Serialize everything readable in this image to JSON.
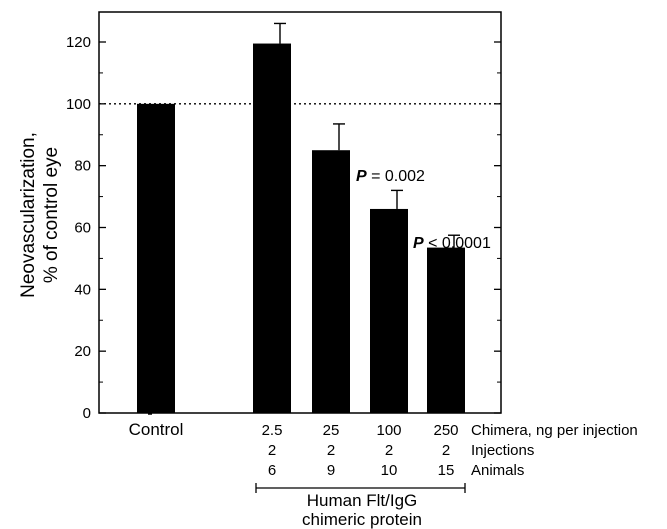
{
  "chart_data": {
    "type": "bar",
    "ylabel_line1": "Neovascularization,",
    "ylabel_line2": "% of control eye",
    "ylim": [
      0,
      130
    ],
    "yticks": [
      0,
      20,
      40,
      60,
      80,
      100,
      120
    ],
    "grid": false,
    "reference_line": 100,
    "categories": [
      "Control",
      "2.5",
      "25",
      "100",
      "250"
    ],
    "values": [
      100,
      119.5,
      85,
      66,
      53.5
    ],
    "error_upper": [
      null,
      126,
      93.5,
      72,
      57.5
    ],
    "row_labels": [
      "Chimera, ng per injection",
      "Injections",
      "Animals"
    ],
    "injections": [
      "",
      "2",
      "2",
      "2",
      "2"
    ],
    "animals": [
      "",
      "6",
      "9",
      "10",
      "15"
    ],
    "annotations": [
      {
        "prefix": "P",
        "text": " = 0.002",
        "bar_index": 2
      },
      {
        "prefix": "P",
        "text": " < 0.0001",
        "bar_index": 3
      }
    ],
    "bracket_label_line1": "Human Flt/IgG",
    "bracket_label_line2": "chimeric protein"
  }
}
